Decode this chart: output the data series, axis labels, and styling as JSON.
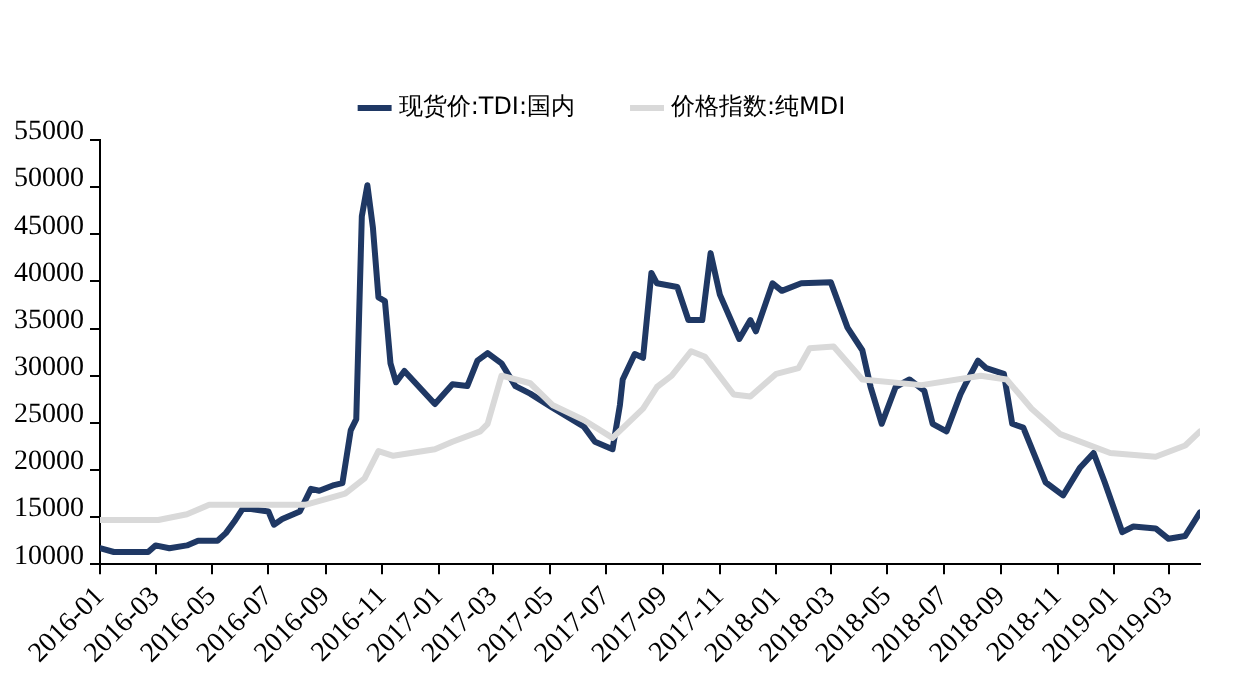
{
  "chart_data": {
    "type": "line",
    "legend": "top",
    "grid": false,
    "marker": "none",
    "line_style": "solid",
    "xlim": [
      "2016-01-01",
      "2019-04-04"
    ],
    "xticks": [
      "2016-01",
      "2016-03",
      "2016-05",
      "2016-07",
      "2016-09",
      "2016-11",
      "2017-01",
      "2017-03",
      "2017-05",
      "2017-07",
      "2017-09",
      "2017-11",
      "2018-01",
      "2018-03",
      "2018-05",
      "2018-07",
      "2018-09",
      "2018-11",
      "2019-01",
      "2019-03"
    ],
    "ylim": [
      10000,
      55000
    ],
    "yticks": [
      10000,
      15000,
      20000,
      25000,
      30000,
      35000,
      40000,
      45000,
      50000,
      55000
    ],
    "series": [
      {
        "name": "现货价:TDI:国内",
        "color": "#1f3864",
        "x": [
          "2016-01-01",
          "2016-01-16",
          "2016-02-22",
          "2016-03-01",
          "2016-03-16",
          "2016-04-04",
          "2016-04-16",
          "2016-05-07",
          "2016-05-16",
          "2016-05-25",
          "2016-06-04",
          "2016-06-16",
          "2016-07-01",
          "2016-07-07",
          "2016-07-16",
          "2016-08-04",
          "2016-08-16",
          "2016-08-25",
          "2016-09-10",
          "2016-09-19",
          "2016-09-28",
          "2016-10-04",
          "2016-10-10",
          "2016-10-16",
          "2016-10-22",
          "2016-10-28",
          "2016-11-04",
          "2016-11-10",
          "2016-11-16",
          "2016-11-25",
          "2016-12-10",
          "2016-12-28",
          "2017-01-16",
          "2017-02-01",
          "2017-02-12",
          "2017-02-23",
          "2017-03-10",
          "2017-03-25",
          "2017-04-10",
          "2017-05-04",
          "2017-06-07",
          "2017-06-19",
          "2017-07-08",
          "2017-07-16",
          "2017-07-19",
          "2017-08-01",
          "2017-08-10",
          "2017-08-19",
          "2017-08-25",
          "2017-09-16",
          "2017-09-28",
          "2017-10-13",
          "2017-10-22",
          "2017-11-01",
          "2017-11-22",
          "2017-12-04",
          "2017-12-10",
          "2017-12-28",
          "2018-01-07",
          "2018-01-28",
          "2018-03-01",
          "2018-03-19",
          "2018-04-04",
          "2018-04-13",
          "2018-04-25",
          "2018-05-10",
          "2018-05-25",
          "2018-06-10",
          "2018-06-19",
          "2018-07-04",
          "2018-07-19",
          "2018-07-25",
          "2018-08-07",
          "2018-08-16",
          "2018-09-04",
          "2018-09-13",
          "2018-09-25",
          "2018-10-19",
          "2018-11-07",
          "2018-11-25",
          "2018-12-10",
          "2018-12-22",
          "2019-01-10",
          "2019-01-22",
          "2019-02-15",
          "2019-03-01",
          "2019-03-19",
          "2019-04-04"
        ],
        "values": [
          11700,
          11300,
          11300,
          12000,
          11700,
          12000,
          12500,
          12500,
          13300,
          14500,
          16000,
          15800,
          15600,
          14200,
          14800,
          15600,
          18000,
          17800,
          18400,
          18600,
          24200,
          25400,
          46900,
          50200,
          45700,
          38300,
          37900,
          31300,
          29300,
          30500,
          28900,
          27000,
          29100,
          28900,
          31600,
          32400,
          31300,
          28900,
          28100,
          26600,
          24600,
          23000,
          22200,
          26900,
          29600,
          32300,
          31900,
          40900,
          39800,
          39400,
          35900,
          35900,
          43000,
          38600,
          33900,
          35900,
          34700,
          39800,
          39000,
          39800,
          39900,
          35100,
          32700,
          28800,
          24900,
          28800,
          29600,
          28400,
          24900,
          24100,
          28000,
          29200,
          31600,
          30800,
          30200,
          24900,
          24500,
          18700,
          17300,
          20200,
          21800,
          18700,
          13400,
          14000,
          13800,
          12700,
          13000,
          15500
        ]
      },
      {
        "name": "价格指数:纯MDI",
        "color": "#d9d9d9",
        "x": [
          "2016-01-01",
          "2016-03-04",
          "2016-04-04",
          "2016-04-28",
          "2016-08-10",
          "2016-09-22",
          "2016-10-13",
          "2016-10-28",
          "2016-11-13",
          "2016-12-28",
          "2017-01-16",
          "2017-02-15",
          "2017-02-23",
          "2017-03-10",
          "2017-04-10",
          "2017-05-04",
          "2017-06-07",
          "2017-07-08",
          "2017-08-10",
          "2017-08-25",
          "2017-09-10",
          "2017-10-01",
          "2017-10-16",
          "2017-11-16",
          "2017-12-04",
          "2018-01-01",
          "2018-01-25",
          "2018-02-06",
          "2018-03-04",
          "2018-04-04",
          "2018-06-07",
          "2018-08-10",
          "2018-09-07",
          "2018-10-04",
          "2018-11-04",
          "2018-12-28",
          "2019-02-15",
          "2019-03-19",
          "2019-04-04"
        ],
        "values": [
          14700,
          14700,
          15300,
          16300,
          16300,
          17500,
          19100,
          22000,
          21500,
          22200,
          23000,
          24100,
          24900,
          30000,
          29200,
          26900,
          25300,
          23400,
          26500,
          28800,
          30000,
          32600,
          32000,
          28000,
          27800,
          30200,
          30800,
          32900,
          33100,
          29600,
          29000,
          30000,
          29600,
          26500,
          23800,
          21800,
          21400,
          22600,
          24100
        ]
      }
    ]
  }
}
